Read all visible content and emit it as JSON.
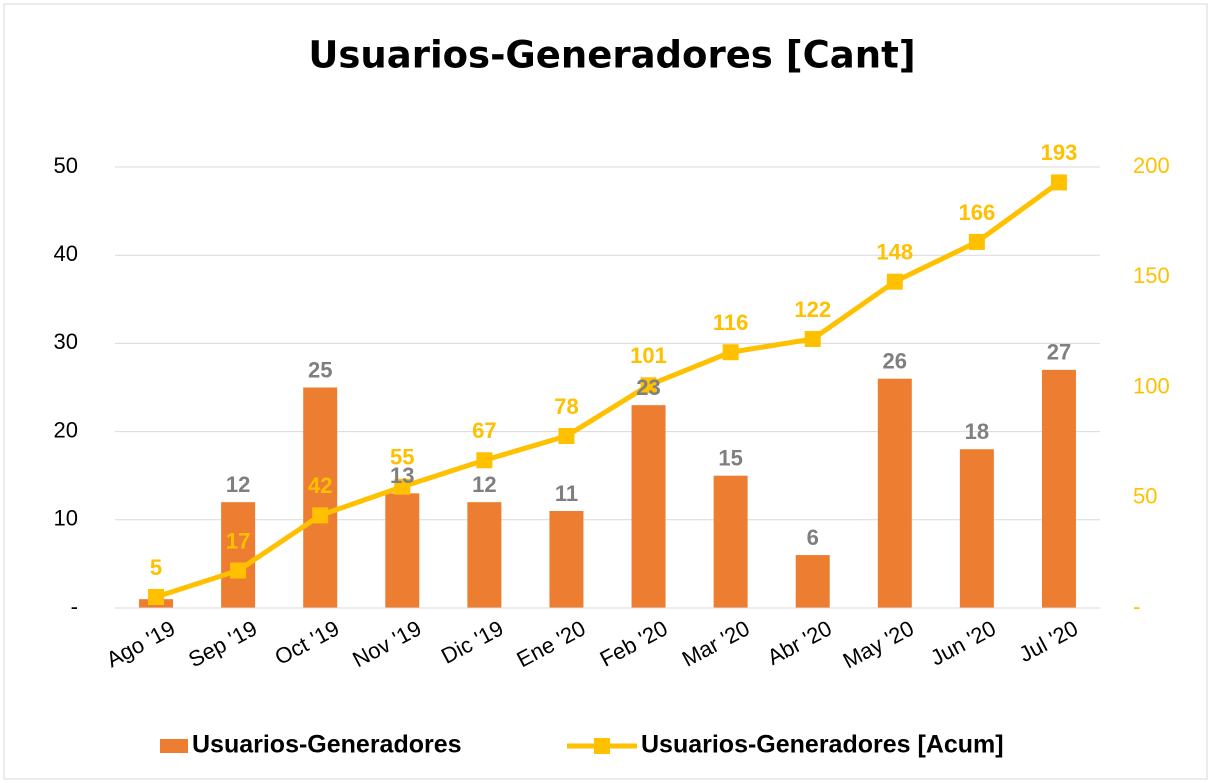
{
  "chart_data": {
    "type": "bar_line",
    "title": "Usuarios-Generadores [Cant]",
    "categories": [
      "Ago '19",
      "Sep '19",
      "Oct '19",
      "Nov '19",
      "Dic '19",
      "Ene '20",
      "Feb '20",
      "Mar '20",
      "Abr '20",
      "May '20",
      "Jun '20",
      "Jul '20"
    ],
    "series": [
      {
        "name": "Usuarios-Generadores",
        "type": "bar",
        "color": "#ed7d31",
        "label_color": "#7f7f7f",
        "values": [
          1,
          12,
          25,
          13,
          12,
          11,
          23,
          15,
          6,
          26,
          18,
          27
        ],
        "value_labels": [
          null,
          "12",
          "25",
          "13",
          "12",
          "11",
          "23",
          "15",
          "6",
          "26",
          "18",
          "27"
        ]
      },
      {
        "name": "Usuarios-Generadores [Acum]",
        "type": "line",
        "axis": "y2",
        "color": "#ffc000",
        "label_color": "#ffc000",
        "values": [
          5,
          17,
          42,
          55,
          67,
          78,
          101,
          116,
          122,
          148,
          166,
          193
        ]
      }
    ],
    "ylim": [
      0,
      50
    ],
    "yticks": [
      {
        "value": 0,
        "label": "-"
      },
      10,
      20,
      30,
      40,
      50
    ],
    "y2lim": [
      0,
      200
    ],
    "y2ticks": [
      {
        "value": 0,
        "label": "-"
      },
      50,
      100,
      150,
      200
    ],
    "grid": true,
    "legend": "bottom"
  }
}
